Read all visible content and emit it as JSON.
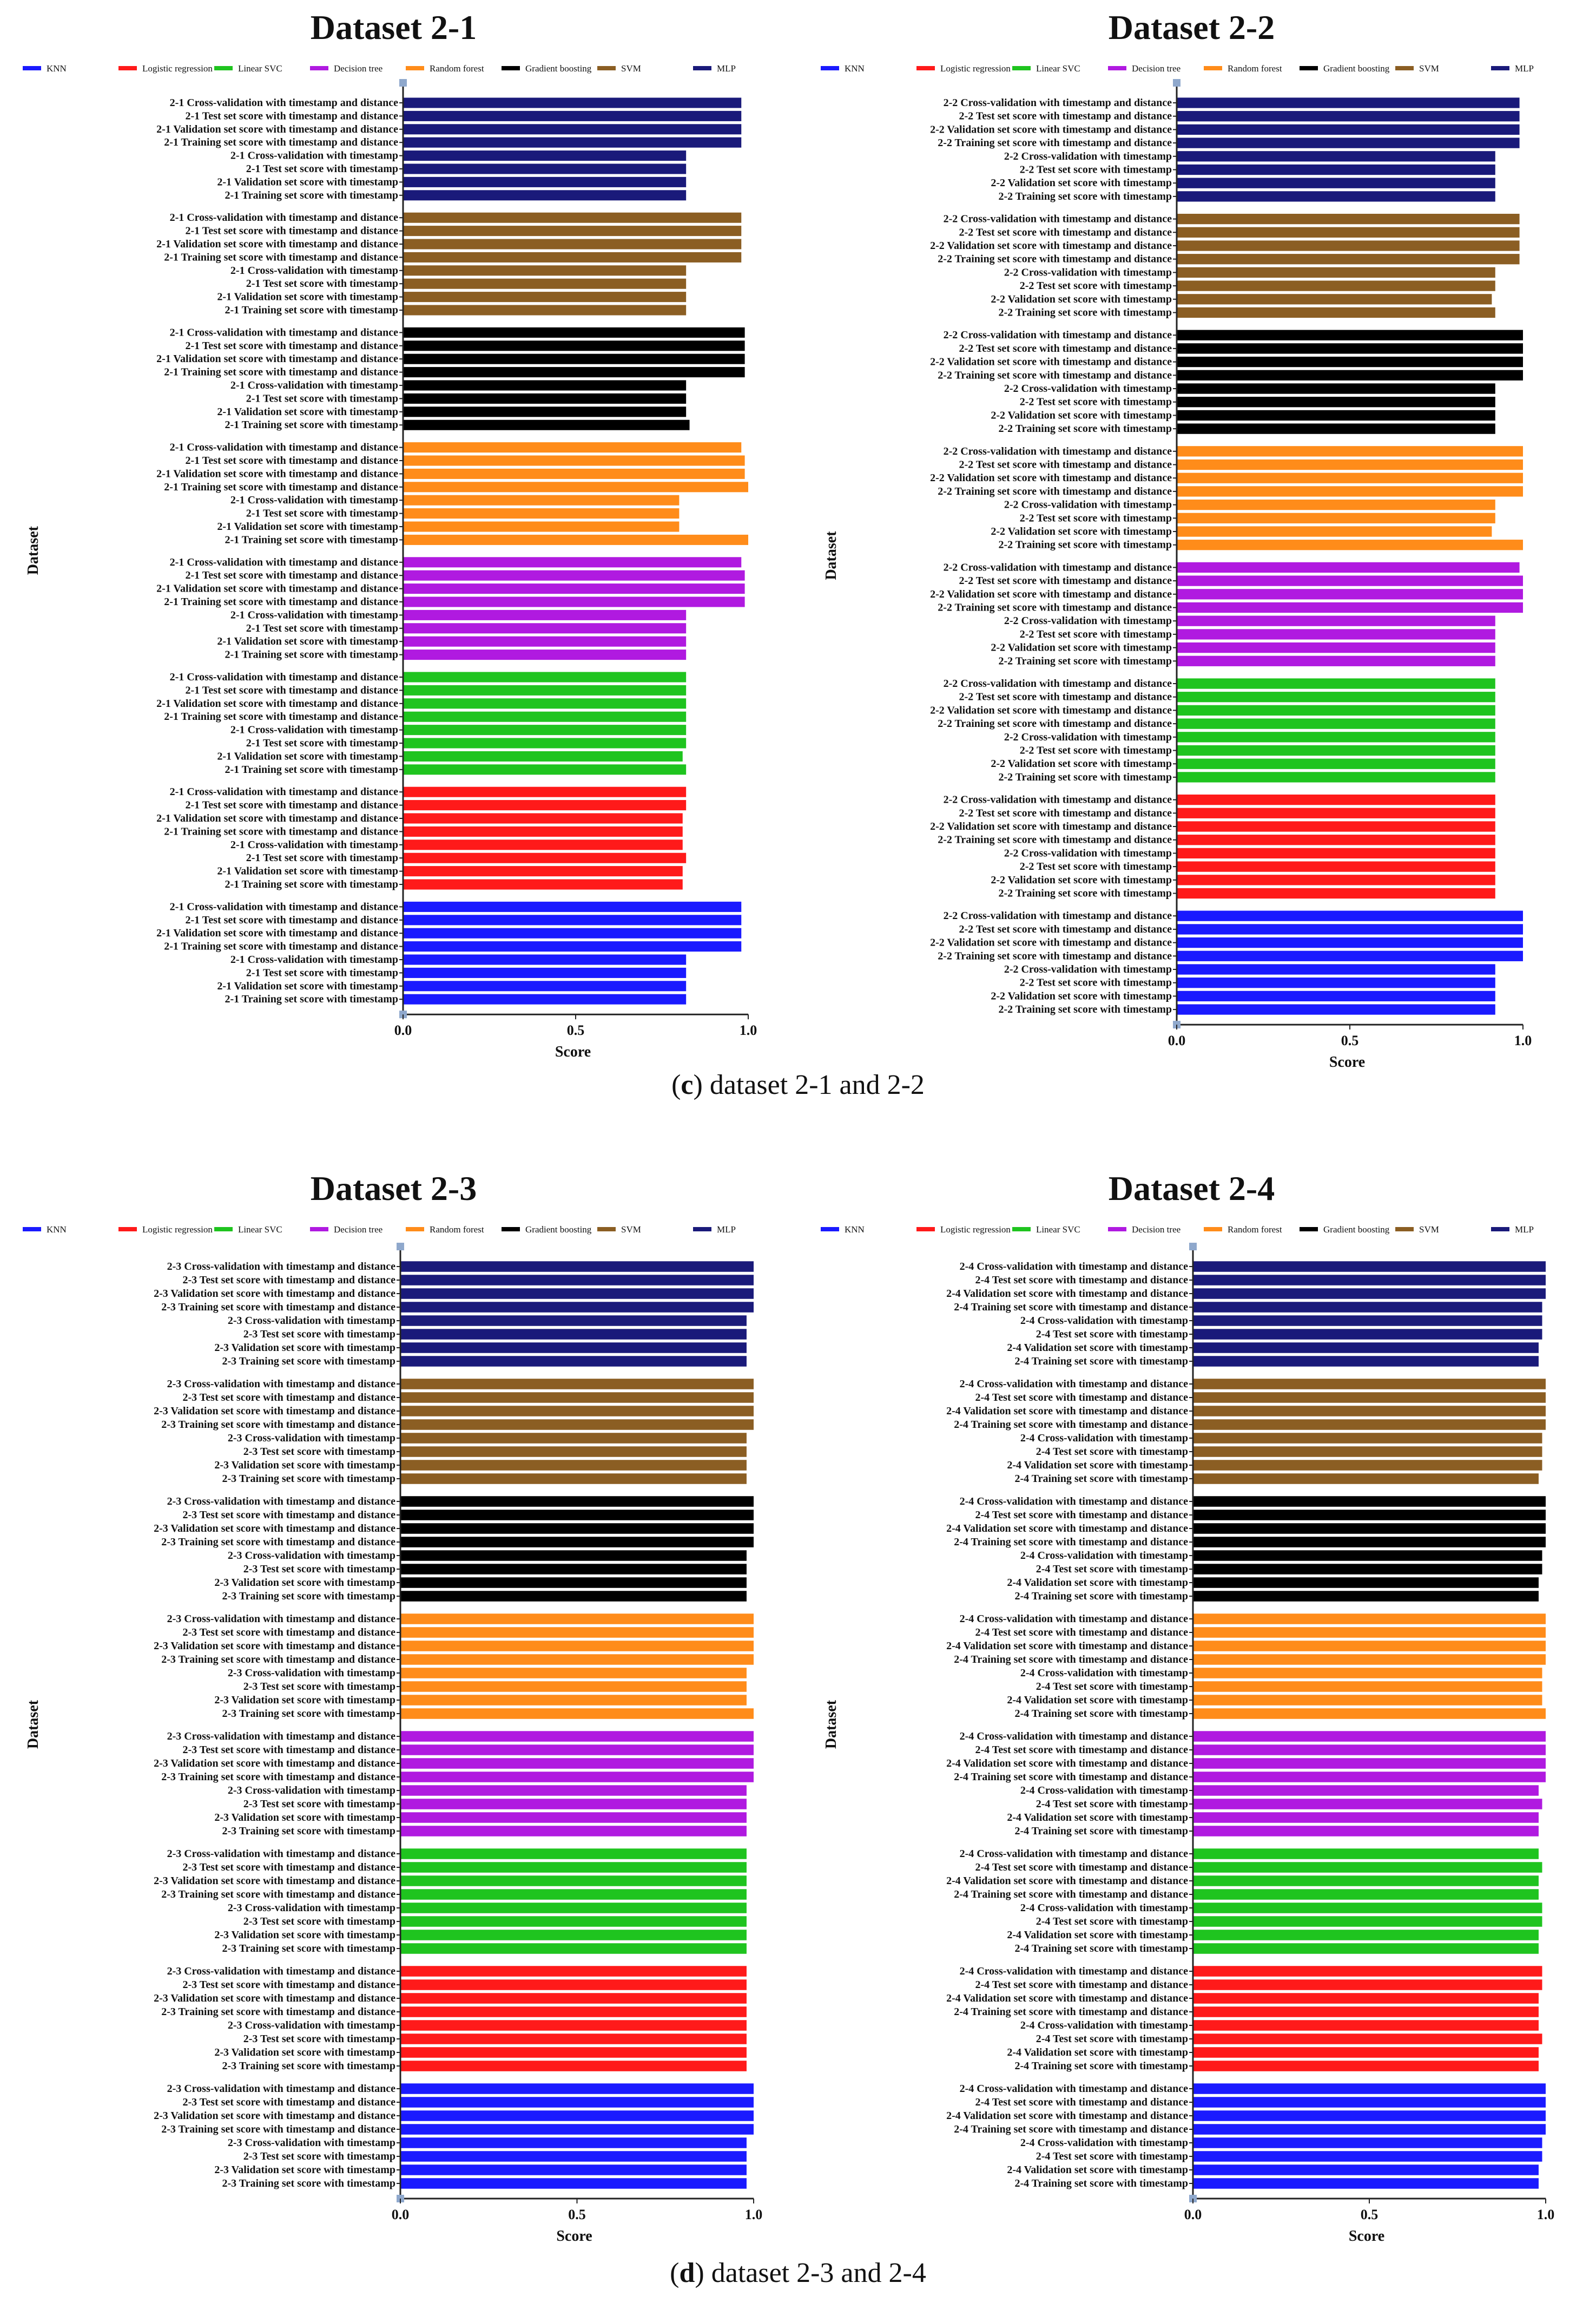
{
  "captions": [
    {
      "letter": "c",
      "text": ") dataset 2-1 and 2-2"
    },
    {
      "letter": "d",
      "text": ") dataset 2-3 and 2-4"
    }
  ],
  "legend": [
    {
      "name": "KNN",
      "color": "#1a1aff"
    },
    {
      "name": "Logistic regression",
      "color": "#ff1a1a"
    },
    {
      "name": "Linear SVC",
      "color": "#1fc41f"
    },
    {
      "name": "Decision tree",
      "color": "#b01ae0"
    },
    {
      "name": "Random forest",
      "color": "#ff8c1a"
    },
    {
      "name": "Gradient boosting",
      "color": "#000000"
    },
    {
      "name": "SVM",
      "color": "#8b5e23"
    },
    {
      "name": "MLP",
      "color": "#1a1a7a"
    }
  ],
  "metrics": [
    "Cross-validation with timestamp and distance",
    "Test set score with timestamp and distance",
    "Validation set score with timestamp and distance",
    "Training set score with timestamp and distance",
    "Cross-validation with timestamp",
    "Test set score with timestamp",
    "Validation set score with timestamp",
    "Training set score with timestamp"
  ],
  "chart_data": [
    {
      "type": "bar",
      "orientation": "horizontal",
      "title": "Dataset 2-1",
      "prefix": "2-1",
      "xlabel": "Score",
      "ylabel": "Dataset",
      "xlim": [
        0,
        1
      ],
      "xticks": [
        "0.0",
        "0.5",
        "1.0"
      ],
      "group_order_top_to_bottom": [
        "MLP",
        "SVM",
        "Gradient boosting",
        "Random forest",
        "Decision tree",
        "Linear SVC",
        "Logistic regression",
        "KNN"
      ],
      "series": [
        {
          "name": "MLP",
          "values": [
            0.98,
            0.98,
            0.98,
            0.98,
            0.82,
            0.82,
            0.82,
            0.82
          ]
        },
        {
          "name": "SVM",
          "values": [
            0.98,
            0.98,
            0.98,
            0.98,
            0.82,
            0.82,
            0.82,
            0.82
          ]
        },
        {
          "name": "Gradient boosting",
          "values": [
            0.99,
            0.99,
            0.99,
            0.99,
            0.82,
            0.82,
            0.82,
            0.83
          ]
        },
        {
          "name": "Random forest",
          "values": [
            0.98,
            0.99,
            0.99,
            1.0,
            0.8,
            0.8,
            0.8,
            1.0
          ]
        },
        {
          "name": "Decision tree",
          "values": [
            0.98,
            0.99,
            0.99,
            0.99,
            0.82,
            0.82,
            0.82,
            0.82
          ]
        },
        {
          "name": "Linear SVC",
          "values": [
            0.82,
            0.82,
            0.82,
            0.82,
            0.82,
            0.82,
            0.81,
            0.82
          ]
        },
        {
          "name": "Logistic regression",
          "values": [
            0.82,
            0.82,
            0.81,
            0.81,
            0.81,
            0.82,
            0.81,
            0.81
          ]
        },
        {
          "name": "KNN",
          "values": [
            0.98,
            0.98,
            0.98,
            0.98,
            0.82,
            0.82,
            0.82,
            0.82
          ]
        }
      ]
    },
    {
      "type": "bar",
      "orientation": "horizontal",
      "title": "Dataset 2-2",
      "prefix": "2-2",
      "xlabel": "Score",
      "ylabel": "Dataset",
      "xlim": [
        0,
        1
      ],
      "xticks": [
        "0.0",
        "0.5",
        "1.0"
      ],
      "group_order_top_to_bottom": [
        "MLP",
        "SVM",
        "Gradient boosting",
        "Random forest",
        "Decision tree",
        "Linear SVC",
        "Logistic regression",
        "KNN"
      ],
      "series": [
        {
          "name": "MLP",
          "values": [
            0.99,
            0.99,
            0.99,
            0.99,
            0.92,
            0.92,
            0.92,
            0.92
          ]
        },
        {
          "name": "SVM",
          "values": [
            0.99,
            0.99,
            0.99,
            0.99,
            0.92,
            0.92,
            0.91,
            0.92
          ]
        },
        {
          "name": "Gradient boosting",
          "values": [
            1.0,
            1.0,
            1.0,
            1.0,
            0.92,
            0.92,
            0.92,
            0.92
          ]
        },
        {
          "name": "Random forest",
          "values": [
            1.0,
            1.0,
            1.0,
            1.0,
            0.92,
            0.92,
            0.91,
            1.0
          ]
        },
        {
          "name": "Decision tree",
          "values": [
            0.99,
            1.0,
            1.0,
            1.0,
            0.92,
            0.92,
            0.92,
            0.92
          ]
        },
        {
          "name": "Linear SVC",
          "values": [
            0.92,
            0.92,
            0.92,
            0.92,
            0.92,
            0.92,
            0.92,
            0.92
          ]
        },
        {
          "name": "Logistic regression",
          "values": [
            0.92,
            0.92,
            0.92,
            0.92,
            0.92,
            0.92,
            0.92,
            0.92
          ]
        },
        {
          "name": "KNN",
          "values": [
            1.0,
            1.0,
            1.0,
            1.0,
            0.92,
            0.92,
            0.92,
            0.92
          ]
        }
      ]
    },
    {
      "type": "bar",
      "orientation": "horizontal",
      "title": "Dataset 2-3",
      "prefix": "2-3",
      "xlabel": "Score",
      "ylabel": "Dataset",
      "xlim": [
        0,
        1
      ],
      "xticks": [
        "0.0",
        "0.5",
        "1.0"
      ],
      "group_order_top_to_bottom": [
        "MLP",
        "SVM",
        "Gradient boosting",
        "Random forest",
        "Decision tree",
        "Linear SVC",
        "Logistic regression",
        "KNN"
      ],
      "series": [
        {
          "name": "MLP",
          "values": [
            1.0,
            1.0,
            1.0,
            1.0,
            0.98,
            0.98,
            0.98,
            0.98
          ]
        },
        {
          "name": "SVM",
          "values": [
            1.0,
            1.0,
            1.0,
            1.0,
            0.98,
            0.98,
            0.98,
            0.98
          ]
        },
        {
          "name": "Gradient boosting",
          "values": [
            1.0,
            1.0,
            1.0,
            1.0,
            0.98,
            0.98,
            0.98,
            0.98
          ]
        },
        {
          "name": "Random forest",
          "values": [
            1.0,
            1.0,
            1.0,
            1.0,
            0.98,
            0.98,
            0.98,
            1.0
          ]
        },
        {
          "name": "Decision tree",
          "values": [
            1.0,
            1.0,
            1.0,
            1.0,
            0.98,
            0.98,
            0.98,
            0.98
          ]
        },
        {
          "name": "Linear SVC",
          "values": [
            0.98,
            0.98,
            0.98,
            0.98,
            0.98,
            0.98,
            0.98,
            0.98
          ]
        },
        {
          "name": "Logistic regression",
          "values": [
            0.98,
            0.98,
            0.98,
            0.98,
            0.98,
            0.98,
            0.98,
            0.98
          ]
        },
        {
          "name": "KNN",
          "values": [
            1.0,
            1.0,
            1.0,
            1.0,
            0.98,
            0.98,
            0.98,
            0.98
          ]
        }
      ]
    },
    {
      "type": "bar",
      "orientation": "horizontal",
      "title": "Dataset 2-4",
      "prefix": "2-4",
      "xlabel": "Score",
      "ylabel": "Dataset",
      "xlim": [
        0,
        1
      ],
      "xticks": [
        "0.0",
        "0.5",
        "1.0"
      ],
      "group_order_top_to_bottom": [
        "MLP",
        "SVM",
        "Gradient boosting",
        "Random forest",
        "Decision tree",
        "Linear SVC",
        "Logistic regression",
        "KNN"
      ],
      "series": [
        {
          "name": "MLP",
          "values": [
            1.0,
            1.0,
            1.0,
            0.99,
            0.99,
            0.99,
            0.98,
            0.98
          ]
        },
        {
          "name": "SVM",
          "values": [
            1.0,
            1.0,
            1.0,
            1.0,
            0.99,
            0.99,
            0.99,
            0.98
          ]
        },
        {
          "name": "Gradient boosting",
          "values": [
            1.0,
            1.0,
            1.0,
            1.0,
            0.99,
            0.99,
            0.98,
            0.98
          ]
        },
        {
          "name": "Random forest",
          "values": [
            1.0,
            1.0,
            1.0,
            1.0,
            0.99,
            0.99,
            0.99,
            1.0
          ]
        },
        {
          "name": "Decision tree",
          "values": [
            1.0,
            1.0,
            1.0,
            1.0,
            0.98,
            0.99,
            0.98,
            0.98
          ]
        },
        {
          "name": "Linear SVC",
          "values": [
            0.98,
            0.99,
            0.98,
            0.98,
            0.99,
            0.99,
            0.98,
            0.98
          ]
        },
        {
          "name": "Logistic regression",
          "values": [
            0.99,
            0.99,
            0.98,
            0.98,
            0.98,
            0.99,
            0.98,
            0.98
          ]
        },
        {
          "name": "KNN",
          "values": [
            1.0,
            1.0,
            1.0,
            1.0,
            0.99,
            0.99,
            0.98,
            0.98
          ]
        }
      ]
    }
  ]
}
